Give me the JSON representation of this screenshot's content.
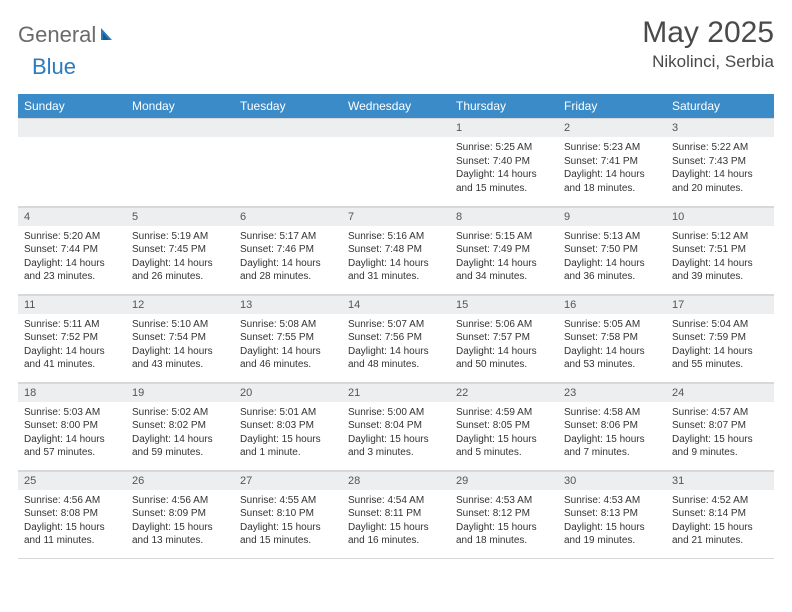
{
  "logo": {
    "text1": "General",
    "text2": "Blue"
  },
  "title": "May 2025",
  "location": "Nikolinci, Serbia",
  "colors": {
    "header_bg": "#3b8bc8",
    "header_text": "#ffffff",
    "daynum_bg": "#eceeef",
    "border": "#d8d8d8",
    "logo_gray": "#6b6b6b",
    "logo_blue": "#2b7bbf"
  },
  "weekdays": [
    "Sunday",
    "Monday",
    "Tuesday",
    "Wednesday",
    "Thursday",
    "Friday",
    "Saturday"
  ],
  "weeks": [
    [
      {
        "n": "",
        "lines": []
      },
      {
        "n": "",
        "lines": []
      },
      {
        "n": "",
        "lines": []
      },
      {
        "n": "",
        "lines": []
      },
      {
        "n": "1",
        "lines": [
          "Sunrise: 5:25 AM",
          "Sunset: 7:40 PM",
          "Daylight: 14 hours and 15 minutes."
        ]
      },
      {
        "n": "2",
        "lines": [
          "Sunrise: 5:23 AM",
          "Sunset: 7:41 PM",
          "Daylight: 14 hours and 18 minutes."
        ]
      },
      {
        "n": "3",
        "lines": [
          "Sunrise: 5:22 AM",
          "Sunset: 7:43 PM",
          "Daylight: 14 hours and 20 minutes."
        ]
      }
    ],
    [
      {
        "n": "4",
        "lines": [
          "Sunrise: 5:20 AM",
          "Sunset: 7:44 PM",
          "Daylight: 14 hours and 23 minutes."
        ]
      },
      {
        "n": "5",
        "lines": [
          "Sunrise: 5:19 AM",
          "Sunset: 7:45 PM",
          "Daylight: 14 hours and 26 minutes."
        ]
      },
      {
        "n": "6",
        "lines": [
          "Sunrise: 5:17 AM",
          "Sunset: 7:46 PM",
          "Daylight: 14 hours and 28 minutes."
        ]
      },
      {
        "n": "7",
        "lines": [
          "Sunrise: 5:16 AM",
          "Sunset: 7:48 PM",
          "Daylight: 14 hours and 31 minutes."
        ]
      },
      {
        "n": "8",
        "lines": [
          "Sunrise: 5:15 AM",
          "Sunset: 7:49 PM",
          "Daylight: 14 hours and 34 minutes."
        ]
      },
      {
        "n": "9",
        "lines": [
          "Sunrise: 5:13 AM",
          "Sunset: 7:50 PM",
          "Daylight: 14 hours and 36 minutes."
        ]
      },
      {
        "n": "10",
        "lines": [
          "Sunrise: 5:12 AM",
          "Sunset: 7:51 PM",
          "Daylight: 14 hours and 39 minutes."
        ]
      }
    ],
    [
      {
        "n": "11",
        "lines": [
          "Sunrise: 5:11 AM",
          "Sunset: 7:52 PM",
          "Daylight: 14 hours and 41 minutes."
        ]
      },
      {
        "n": "12",
        "lines": [
          "Sunrise: 5:10 AM",
          "Sunset: 7:54 PM",
          "Daylight: 14 hours and 43 minutes."
        ]
      },
      {
        "n": "13",
        "lines": [
          "Sunrise: 5:08 AM",
          "Sunset: 7:55 PM",
          "Daylight: 14 hours and 46 minutes."
        ]
      },
      {
        "n": "14",
        "lines": [
          "Sunrise: 5:07 AM",
          "Sunset: 7:56 PM",
          "Daylight: 14 hours and 48 minutes."
        ]
      },
      {
        "n": "15",
        "lines": [
          "Sunrise: 5:06 AM",
          "Sunset: 7:57 PM",
          "Daylight: 14 hours and 50 minutes."
        ]
      },
      {
        "n": "16",
        "lines": [
          "Sunrise: 5:05 AM",
          "Sunset: 7:58 PM",
          "Daylight: 14 hours and 53 minutes."
        ]
      },
      {
        "n": "17",
        "lines": [
          "Sunrise: 5:04 AM",
          "Sunset: 7:59 PM",
          "Daylight: 14 hours and 55 minutes."
        ]
      }
    ],
    [
      {
        "n": "18",
        "lines": [
          "Sunrise: 5:03 AM",
          "Sunset: 8:00 PM",
          "Daylight: 14 hours and 57 minutes."
        ]
      },
      {
        "n": "19",
        "lines": [
          "Sunrise: 5:02 AM",
          "Sunset: 8:02 PM",
          "Daylight: 14 hours and 59 minutes."
        ]
      },
      {
        "n": "20",
        "lines": [
          "Sunrise: 5:01 AM",
          "Sunset: 8:03 PM",
          "Daylight: 15 hours and 1 minute."
        ]
      },
      {
        "n": "21",
        "lines": [
          "Sunrise: 5:00 AM",
          "Sunset: 8:04 PM",
          "Daylight: 15 hours and 3 minutes."
        ]
      },
      {
        "n": "22",
        "lines": [
          "Sunrise: 4:59 AM",
          "Sunset: 8:05 PM",
          "Daylight: 15 hours and 5 minutes."
        ]
      },
      {
        "n": "23",
        "lines": [
          "Sunrise: 4:58 AM",
          "Sunset: 8:06 PM",
          "Daylight: 15 hours and 7 minutes."
        ]
      },
      {
        "n": "24",
        "lines": [
          "Sunrise: 4:57 AM",
          "Sunset: 8:07 PM",
          "Daylight: 15 hours and 9 minutes."
        ]
      }
    ],
    [
      {
        "n": "25",
        "lines": [
          "Sunrise: 4:56 AM",
          "Sunset: 8:08 PM",
          "Daylight: 15 hours and 11 minutes."
        ]
      },
      {
        "n": "26",
        "lines": [
          "Sunrise: 4:56 AM",
          "Sunset: 8:09 PM",
          "Daylight: 15 hours and 13 minutes."
        ]
      },
      {
        "n": "27",
        "lines": [
          "Sunrise: 4:55 AM",
          "Sunset: 8:10 PM",
          "Daylight: 15 hours and 15 minutes."
        ]
      },
      {
        "n": "28",
        "lines": [
          "Sunrise: 4:54 AM",
          "Sunset: 8:11 PM",
          "Daylight: 15 hours and 16 minutes."
        ]
      },
      {
        "n": "29",
        "lines": [
          "Sunrise: 4:53 AM",
          "Sunset: 8:12 PM",
          "Daylight: 15 hours and 18 minutes."
        ]
      },
      {
        "n": "30",
        "lines": [
          "Sunrise: 4:53 AM",
          "Sunset: 8:13 PM",
          "Daylight: 15 hours and 19 minutes."
        ]
      },
      {
        "n": "31",
        "lines": [
          "Sunrise: 4:52 AM",
          "Sunset: 8:14 PM",
          "Daylight: 15 hours and 21 minutes."
        ]
      }
    ]
  ]
}
